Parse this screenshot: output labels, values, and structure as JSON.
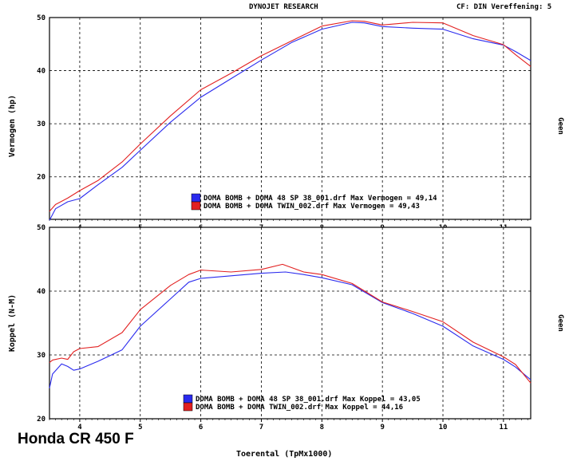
{
  "header": {
    "title": "DYNOJET RESEARCH",
    "cf": "CF: DIN  Vereffening: 5"
  },
  "caption": "Honda CR 450 F",
  "chart_data": [
    {
      "type": "line",
      "ylabel": "Vermogen (hp)",
      "right_label": "Geen",
      "xlabel": "Toerental (TpMx1000)",
      "xlim": [
        3.5,
        11.45
      ],
      "ylim": [
        12,
        50
      ],
      "xticks": [
        4,
        5,
        6,
        7,
        8,
        9,
        10,
        11
      ],
      "yticks": [
        20,
        30,
        40,
        50
      ],
      "grid": true,
      "legend_position": "bottom-center",
      "colors": {
        "blue": "#2a2aee",
        "red": "#e22020"
      },
      "series": [
        {
          "name": "DOMA BOMB + DOMA 48 SP 38_001.drf Max Vermogen = 49,14",
          "color": "#2a2aee",
          "x": [
            3.5,
            3.6,
            3.8,
            4.0,
            4.3,
            4.7,
            5.0,
            5.5,
            6.0,
            6.5,
            7.0,
            7.5,
            8.0,
            8.5,
            8.7,
            9.0,
            9.5,
            10.0,
            10.5,
            11.0,
            11.2,
            11.45
          ],
          "values": [
            11.8,
            14.0,
            15.3,
            15.9,
            18.5,
            21.8,
            25.0,
            30.3,
            35.0,
            38.5,
            42.0,
            45.3,
            47.8,
            49.1,
            49.0,
            48.3,
            48.0,
            47.8,
            46.0,
            44.8,
            43.6,
            41.9
          ]
        },
        {
          "name": "DOMA BOMB + DOMA TWIN_002.drf Max Vermogen = 49,43",
          "color": "#e22020",
          "x": [
            3.5,
            3.6,
            3.8,
            4.0,
            4.3,
            4.7,
            5.0,
            5.5,
            6.0,
            6.5,
            7.0,
            7.5,
            8.0,
            8.5,
            8.7,
            9.0,
            9.5,
            10.0,
            10.5,
            11.0,
            11.2,
            11.45
          ],
          "values": [
            13.5,
            14.8,
            16.0,
            17.4,
            19.3,
            22.8,
            26.2,
            31.5,
            36.4,
            39.5,
            42.8,
            45.6,
            48.4,
            49.4,
            49.3,
            48.6,
            49.1,
            49.0,
            46.6,
            44.9,
            43.0,
            40.8
          ]
        }
      ]
    },
    {
      "type": "line",
      "ylabel": "Koppel (N-M)",
      "right_label": "Geen",
      "xlabel": "Toerental (TpMx1000)",
      "xlim": [
        3.5,
        11.45
      ],
      "ylim": [
        20,
        50
      ],
      "xticks": [
        4,
        5,
        6,
        7,
        8,
        9,
        10,
        11
      ],
      "yticks": [
        20,
        30,
        40,
        50
      ],
      "grid": true,
      "legend_position": "bottom-center",
      "colors": {
        "blue": "#2a2aee",
        "red": "#e22020"
      },
      "series": [
        {
          "name": "DOMA BOMB + DOMA 48 SP 38_001.drf Max Koppel = 43,05",
          "color": "#2a2aee",
          "x": [
            3.5,
            3.55,
            3.7,
            3.8,
            3.9,
            4.0,
            4.3,
            4.7,
            5.0,
            5.5,
            5.8,
            6.0,
            6.5,
            7.0,
            7.4,
            7.7,
            8.0,
            8.5,
            9.0,
            9.5,
            10.0,
            10.5,
            11.0,
            11.2,
            11.45
          ],
          "values": [
            24.8,
            27.0,
            28.6,
            28.2,
            27.6,
            27.8,
            29.0,
            30.8,
            34.5,
            38.8,
            41.4,
            42.0,
            42.4,
            42.8,
            43.0,
            42.6,
            42.1,
            41.0,
            38.2,
            36.5,
            34.5,
            31.4,
            29.3,
            28.1,
            26.1
          ]
        },
        {
          "name": "DOMA BOMB + DOMA TWIN_002.drf Max Koppel = 44,16",
          "color": "#e22020",
          "x": [
            3.5,
            3.55,
            3.7,
            3.8,
            3.9,
            4.0,
            4.3,
            4.7,
            5.0,
            5.5,
            5.8,
            6.0,
            6.5,
            7.0,
            7.35,
            7.7,
            8.0,
            8.5,
            9.0,
            9.5,
            10.0,
            10.5,
            11.0,
            11.2,
            11.45
          ],
          "values": [
            28.8,
            29.2,
            29.5,
            29.3,
            30.5,
            31.0,
            31.3,
            33.5,
            37.1,
            40.9,
            42.6,
            43.3,
            43.0,
            43.4,
            44.2,
            43.0,
            42.6,
            41.2,
            38.3,
            36.8,
            35.2,
            32.0,
            29.7,
            28.5,
            25.6
          ]
        }
      ]
    }
  ]
}
